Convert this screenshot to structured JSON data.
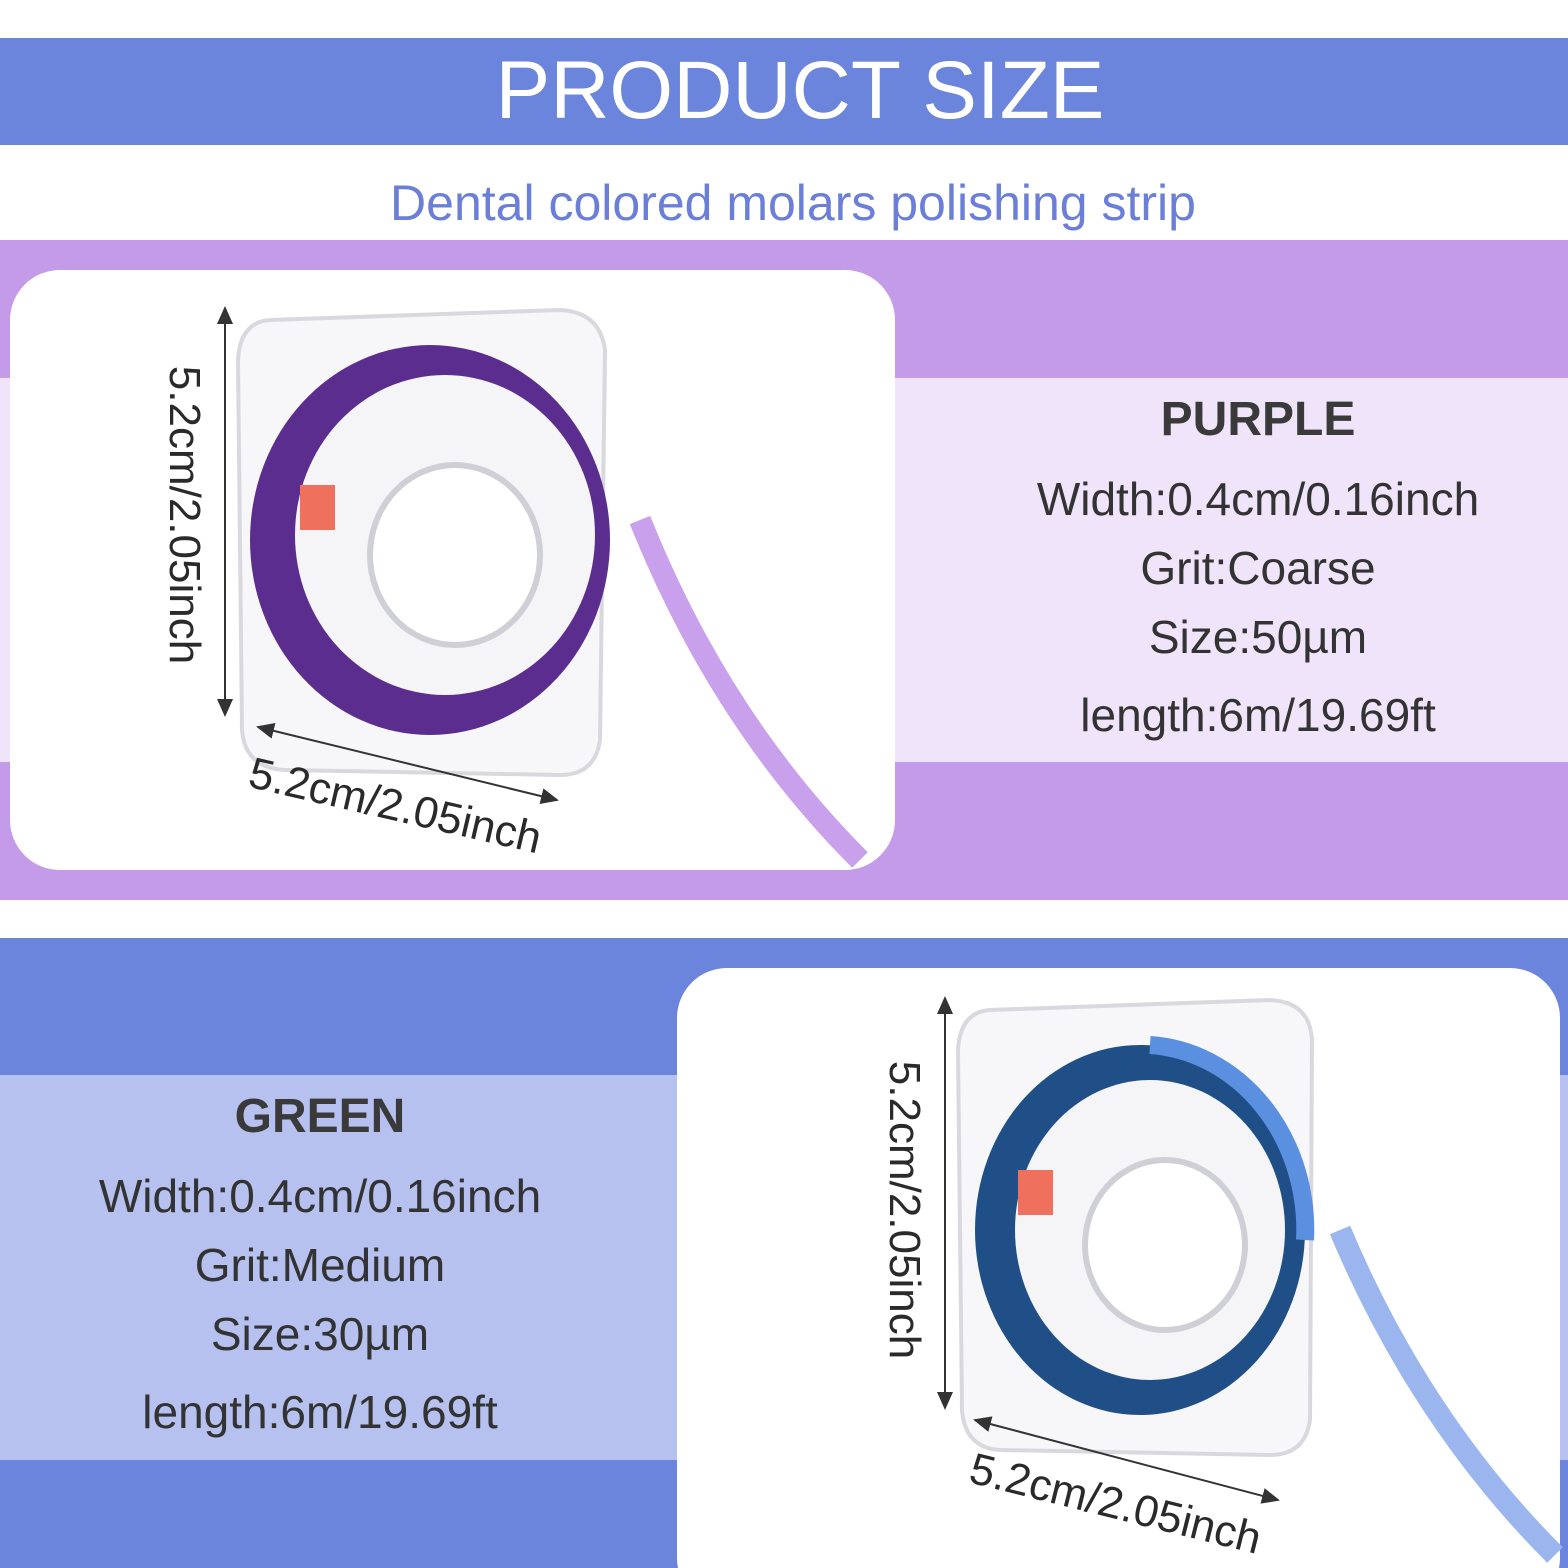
{
  "header": {
    "title": "PRODUCT SIZE",
    "subtitle": "Dental colored molars polishing strip"
  },
  "products": [
    {
      "name": "PURPLE",
      "specs": [
        "Width:0.4cm/0.16inch",
        "Grit:Coarse",
        "Size:50µm",
        "length:6m/19.69ft"
      ],
      "dimensions": {
        "height": "5.2cm/2.05inch",
        "width": "5.2cm/2.05inch"
      }
    },
    {
      "name": "GREEN",
      "specs": [
        "Width:0.4cm/0.16inch",
        "Grit:Medium",
        "Size:30µm",
        "length:6m/19.69ft"
      ],
      "dimensions": {
        "height": "5.2cm/2.05inch",
        "width": "5.2cm/2.05inch"
      }
    }
  ]
}
